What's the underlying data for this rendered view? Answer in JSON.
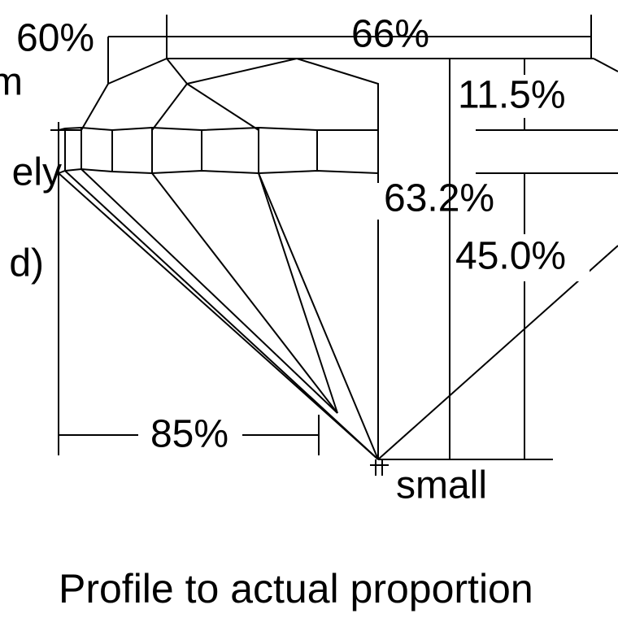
{
  "labels": {
    "crown_angle": "60%",
    "table": "66%",
    "left_top": "m",
    "crown_height": "11.5%",
    "left_middle": "ely",
    "total_depth": "63.2%",
    "pavilion_depth": "45.0%",
    "left_bottom": "d)",
    "pavilion_width": "85%",
    "culet": "small"
  },
  "caption": "Profile to actual proportion"
}
